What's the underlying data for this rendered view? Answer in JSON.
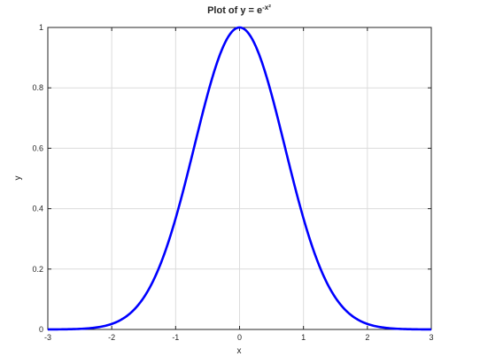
{
  "chart_data": {
    "type": "line",
    "title": {
      "text": "Plot of y = e",
      "superscript": "-x²"
    },
    "xlabel": "x",
    "ylabel": "y",
    "xlim": [
      -3,
      3
    ],
    "ylim": [
      0,
      1
    ],
    "xticks": [
      -3,
      -2,
      -1,
      0,
      1,
      2,
      3
    ],
    "xtick_labels": [
      "-3",
      "-2",
      "-1",
      "0",
      "1",
      "2",
      "3"
    ],
    "yticks": [
      0,
      0.2,
      0.4,
      0.6,
      0.8,
      1
    ],
    "ytick_labels": [
      "0",
      "0.2",
      "0.4",
      "0.6",
      "0.8",
      "1"
    ],
    "grid": true,
    "legend": "none",
    "series": [
      {
        "color": "#0000ff",
        "function": "exp(-x^2)",
        "x": [
          -3,
          -2.75,
          -2.5,
          -2.25,
          -2,
          -1.75,
          -1.5,
          -1.25,
          -1,
          -0.75,
          -0.5,
          -0.25,
          0,
          0.25,
          0.5,
          0.75,
          1,
          1.25,
          1.5,
          1.75,
          2,
          2.25,
          2.5,
          2.75,
          3
        ],
        "y": [
          0.0001,
          0.0005,
          0.0019,
          0.0063,
          0.0183,
          0.0468,
          0.1054,
          0.2096,
          0.3679,
          0.5698,
          0.7788,
          0.9394,
          1.0,
          0.9394,
          0.7788,
          0.5698,
          0.3679,
          0.2096,
          0.1054,
          0.0468,
          0.0183,
          0.0063,
          0.0019,
          0.0005,
          0.0001
        ]
      }
    ]
  }
}
